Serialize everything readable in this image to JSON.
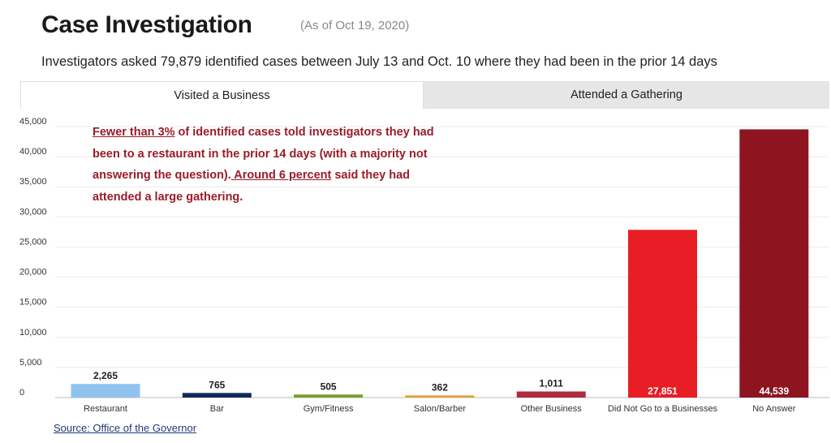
{
  "header": {
    "title": "Case Investigation",
    "as_of": "(As of Oct 19, 2020)",
    "subtitle": "Investigators asked 79,879 identified cases between July 13 and Oct. 10 where they had been in the prior 14 days"
  },
  "tabs": [
    {
      "label": "Visited a Business",
      "active": true
    },
    {
      "label": "Attended a Gathering",
      "active": false
    }
  ],
  "annotation": {
    "part1_underlined": "Fewer than 3%",
    "part2": " of identified cases told investigators they had been to a restaurant in the prior 14 days (with a majority not answering the question).",
    "part3_underlined": " Around 6 percent",
    "part4": " said they had attended a large gathering."
  },
  "source": "Source: Office of the Governor",
  "colors": {
    "annotation": "#9b1c2a",
    "source_link": "#223a75"
  },
  "chart_data": {
    "type": "bar",
    "categories": [
      "Restaurant",
      "Bar",
      "Gym/Fitness",
      "Salon/Barber",
      "Other Business",
      "Did Not Go to a Businesses",
      "No Answer"
    ],
    "values": [
      2265,
      765,
      505,
      362,
      1011,
      27851,
      44539
    ],
    "value_labels": [
      "2,265",
      "765",
      "505",
      "362",
      "1,011",
      "27,851",
      "44,539"
    ],
    "bar_colors": [
      "#8fc3ee",
      "#0f2a5a",
      "#7a9e2f",
      "#e2a03a",
      "#b02a3e",
      "#e81d25",
      "#8e1520"
    ],
    "label_colors": [
      "#222222",
      "#222222",
      "#222222",
      "#222222",
      "#222222",
      "#ffffff",
      "#ffffff"
    ],
    "labels_inside": [
      false,
      false,
      false,
      false,
      false,
      true,
      true
    ],
    "ylim": [
      0,
      45000
    ],
    "yticks": [
      0,
      5000,
      10000,
      15000,
      20000,
      25000,
      30000,
      35000,
      40000,
      45000
    ],
    "ytick_labels": [
      "0",
      "5,000",
      "10,000",
      "15,000",
      "20,000",
      "25,000",
      "30,000",
      "35,000",
      "40,000",
      "45,000"
    ],
    "grid": true,
    "xlabel": "",
    "ylabel": ""
  }
}
